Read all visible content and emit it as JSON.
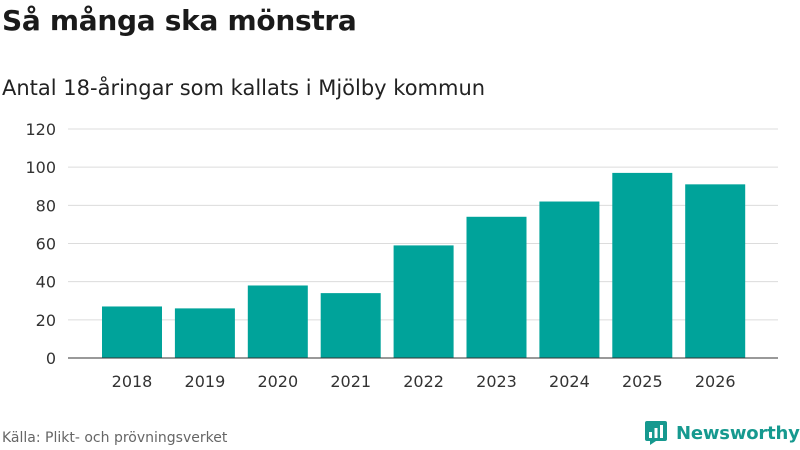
{
  "header": {
    "title": "Så många ska mönstra",
    "subtitle": "Antal 18-åringar som kallats i Mjölby kommun"
  },
  "footer": {
    "source": "Källa: Plikt- och prövningsverket",
    "brand": "Newsworthy"
  },
  "colors": {
    "bar": "#00a39a",
    "brand": "#16998f",
    "grid": "#dcdcdc"
  },
  "chart_data": {
    "type": "bar",
    "title": "Så många ska mönstra",
    "subtitle": "Antal 18-åringar som kallats i Mjölby kommun",
    "xlabel": "",
    "ylabel": "",
    "categories": [
      "2018",
      "2019",
      "2020",
      "2021",
      "2022",
      "2023",
      "2024",
      "2025",
      "2026"
    ],
    "values": [
      27,
      26,
      38,
      34,
      59,
      74,
      82,
      97,
      91
    ],
    "ylim": [
      0,
      120
    ],
    "yticks": [
      0,
      20,
      40,
      60,
      80,
      100,
      120
    ],
    "grid": true,
    "legend": "none"
  }
}
